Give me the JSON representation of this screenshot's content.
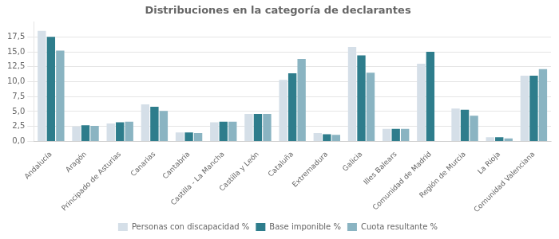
{
  "chart_data": {
    "type": "bar",
    "title": "Distribuciones en la categoría de declarantes",
    "categories": [
      "Andalucía",
      "Aragón",
      "Principado de Asturias",
      "Canarias",
      "Cantabria",
      "Castilla - La Mancha",
      "Castilla y León",
      "Cataluña",
      "Extremadura",
      "Galicia",
      "Illes Balears",
      "Comunidad de Madrid",
      "Región de Murcia",
      "La Rioja",
      "Comunidad Valenciana"
    ],
    "series": [
      {
        "name": "Personas con discapacidad %",
        "color": "#d5dfe8",
        "values": [
          18.5,
          2.5,
          3.0,
          6.2,
          1.5,
          3.2,
          4.6,
          10.3,
          1.4,
          15.8,
          2.1,
          13.0,
          5.5,
          0.7,
          11.0
        ]
      },
      {
        "name": "Base imponible %",
        "color": "#2e7d8c",
        "values": [
          17.5,
          2.7,
          3.2,
          5.8,
          1.5,
          3.3,
          4.6,
          11.4,
          1.2,
          14.4,
          2.1,
          15.0,
          5.3,
          0.7,
          11.0
        ]
      },
      {
        "name": "Cuota resultante %",
        "color": "#8ab4c2",
        "values": [
          15.2,
          2.6,
          3.3,
          5.1,
          1.4,
          3.3,
          4.6,
          13.8,
          1.1,
          11.5,
          2.1,
          0.0,
          4.3,
          0.5,
          12.1
        ]
      }
    ],
    "ylim": [
      0,
      20
    ],
    "yticks": [
      {
        "value": 0.0,
        "label": "0,0"
      },
      {
        "value": 2.5,
        "label": "2,5"
      },
      {
        "value": 5.0,
        "label": "5,0"
      },
      {
        "value": 7.5,
        "label": "7,5"
      },
      {
        "value": 10.0,
        "label": "10,0"
      },
      {
        "value": 12.5,
        "label": "12,5"
      },
      {
        "value": 15.0,
        "label": "15,0"
      },
      {
        "value": 17.5,
        "label": "17,5"
      }
    ],
    "grid": true,
    "legend": "bottom"
  }
}
